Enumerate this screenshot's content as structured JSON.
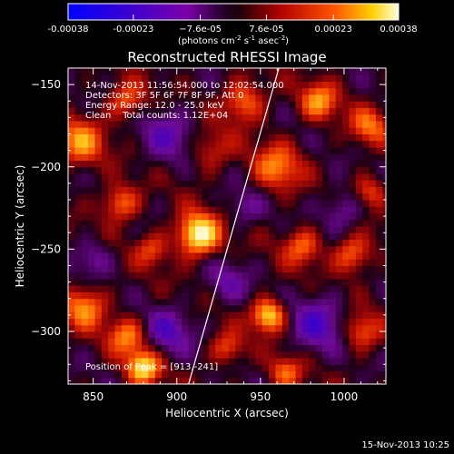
{
  "colorbar": {
    "ticks": [
      {
        "value": -0.00038,
        "label": "-0.00038"
      },
      {
        "value": -0.00023,
        "label": "-0.00023"
      },
      {
        "value": -7.6e-05,
        "label": "−7.6e-05"
      },
      {
        "value": 7.6e-05,
        "label": "7.6e-05"
      },
      {
        "value": 0.00023,
        "label": "0.00023"
      },
      {
        "value": 0.00038,
        "label": "0.00038"
      }
    ],
    "range": [
      -0.00038,
      0.00038
    ],
    "units_main": "(photons cm",
    "units_exp1": "-2",
    "units_mid": " s",
    "units_exp2": "-1",
    "units_end": " asec",
    "units_exp3": "-2",
    "units_close": ")"
  },
  "chart_data": {
    "type": "heatmap",
    "title": "Reconstructed RHESSI Image",
    "xlabel": "Heliocentric X (arcsec)",
    "ylabel": "Heliocentric Y (arcsec)",
    "xlim": [
      835,
      1025
    ],
    "ylim": [
      -332,
      -140
    ],
    "x_ticks": [
      850,
      900,
      950,
      1000
    ],
    "y_ticks": [
      -150,
      -200,
      -250,
      -300
    ],
    "y_tick_labels": [
      "−150",
      "−200",
      "−250",
      "−300"
    ],
    "annotations": [
      "14-Nov-2013 11:56:54.000 to 12:02:54.000",
      "Detectors: 3F 5F 6F 7F 8F 9F, Att 0",
      "Energy Range: 12.0 - 25.0 keV",
      "Clean    Total counts: 1.12E+04"
    ],
    "peak_label": "Position of Peak = [913,-241]",
    "peak": [
      913,
      -241
    ],
    "limb_line": [
      [
        907,
        -332
      ],
      [
        961,
        -140
      ]
    ],
    "blobs": [
      {
        "x": 913,
        "y": -241,
        "v": 1.0,
        "r": 9
      },
      {
        "x": 866,
        "y": -222,
        "v": 0.55,
        "r": 8
      },
      {
        "x": 842,
        "y": -185,
        "v": 0.6,
        "r": 10
      },
      {
        "x": 870,
        "y": -160,
        "v": 0.5,
        "r": 8
      },
      {
        "x": 940,
        "y": -160,
        "v": 0.55,
        "r": 9
      },
      {
        "x": 960,
        "y": -200,
        "v": 0.55,
        "r": 10
      },
      {
        "x": 985,
        "y": -160,
        "v": 0.6,
        "r": 8
      },
      {
        "x": 1015,
        "y": -175,
        "v": 0.5,
        "r": 8
      },
      {
        "x": 955,
        "y": -290,
        "v": 0.85,
        "r": 7
      },
      {
        "x": 845,
        "y": -285,
        "v": 0.6,
        "r": 9
      },
      {
        "x": 870,
        "y": -303,
        "v": 0.55,
        "r": 8
      },
      {
        "x": 880,
        "y": -322,
        "v": 0.85,
        "r": 7
      },
      {
        "x": 1005,
        "y": -253,
        "v": 0.55,
        "r": 8
      },
      {
        "x": 1010,
        "y": -300,
        "v": 0.5,
        "r": 8
      },
      {
        "x": 965,
        "y": -325,
        "v": 0.5,
        "r": 7
      },
      {
        "x": 930,
        "y": -310,
        "v": 0.45,
        "r": 7
      },
      {
        "x": 975,
        "y": -248,
        "v": 0.5,
        "r": 8
      },
      {
        "x": 1015,
        "y": -215,
        "v": 0.45,
        "r": 7
      },
      {
        "x": 920,
        "y": -190,
        "v": 0.35,
        "r": 9
      },
      {
        "x": 885,
        "y": -250,
        "v": 0.4,
        "r": 7
      },
      {
        "x": 895,
        "y": -180,
        "v": -0.35,
        "r": 12
      },
      {
        "x": 895,
        "y": -300,
        "v": -0.4,
        "r": 10
      },
      {
        "x": 985,
        "y": -295,
        "v": -0.45,
        "r": 12
      },
      {
        "x": 930,
        "y": -270,
        "v": -0.3,
        "r": 9
      },
      {
        "x": 1000,
        "y": -225,
        "v": -0.35,
        "r": 9
      },
      {
        "x": 850,
        "y": -255,
        "v": -0.3,
        "r": 8
      },
      {
        "x": 940,
        "y": -225,
        "v": -0.25,
        "r": 8
      }
    ]
  },
  "footer_date": "15-Nov-2013 10:25"
}
